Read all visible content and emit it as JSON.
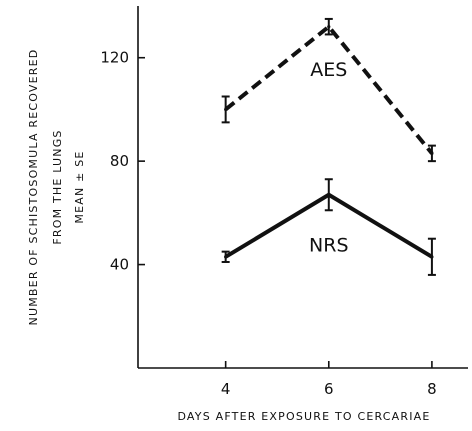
{
  "chart_data": {
    "type": "line",
    "xlabel": "DAYS AFTER EXPOSURE TO CERCARIAE",
    "ylabel_lines": [
      "NUMBER OF SCHISTOSOMULA RECOVERED",
      "FROM THE LUNGS",
      "MEAN ± SE"
    ],
    "x": [
      4,
      6,
      8
    ],
    "x_ticks": [
      "4",
      "6",
      "8"
    ],
    "y_ticks": [
      "40",
      "80",
      "120"
    ],
    "y_tick_values": [
      40,
      80,
      120
    ],
    "xlim": [
      2.3,
      8.7
    ],
    "ylim": [
      0,
      140
    ],
    "series": [
      {
        "name": "AES",
        "style": "dashed",
        "values": [
          100,
          132,
          83
        ],
        "se": [
          5,
          3,
          3
        ]
      },
      {
        "name": "NRS",
        "style": "solid",
        "values": [
          43,
          67,
          43
        ],
        "se": [
          2,
          6,
          7
        ]
      }
    ],
    "colors": {
      "line": "#111111",
      "background": "#ffffff"
    }
  }
}
